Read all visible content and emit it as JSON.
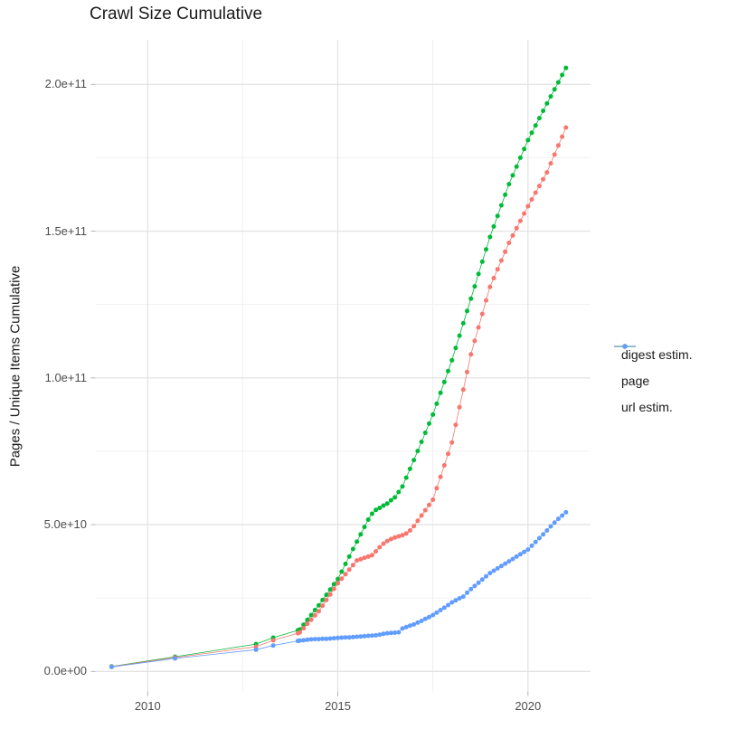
{
  "title": "Crawl Size Cumulative",
  "y_axis": {
    "title": "Pages / Unique Items Cumulative",
    "ticks": [
      {
        "label": "0.0e+00",
        "value": 0
      },
      {
        "label": "5.0e+10",
        "value": 50
      },
      {
        "label": "1.0e+11",
        "value": 100
      },
      {
        "label": "1.5e+11",
        "value": 150
      },
      {
        "label": "2.0e+11",
        "value": 200
      }
    ],
    "minor_values": [
      25,
      75,
      125,
      175
    ]
  },
  "x_axis": {
    "ticks": [
      {
        "label": "2010",
        "value": 2010
      },
      {
        "label": "2015",
        "value": 2015
      },
      {
        "label": "2020",
        "value": 2020
      }
    ],
    "minor_values": [
      2012.5,
      2017.5
    ]
  },
  "legend": {
    "items": [
      {
        "label": "digest estim.",
        "series": "digest",
        "color": "#F8766D"
      },
      {
        "label": "page",
        "series": "page",
        "color": "#00BA38"
      },
      {
        "label": "url estim.",
        "series": "url",
        "color": "#619CFF"
      }
    ]
  },
  "chart_data": {
    "type": "line",
    "title": "Crawl Size Cumulative",
    "xlabel": "",
    "ylabel": "Pages / Unique Items Cumulative",
    "unit": "billions of pages (1e9)",
    "xlim": [
      2008.45,
      2021.65
    ],
    "ylim": [
      -10,
      215
    ],
    "grid": "major+minor",
    "legend_position": "right",
    "x": [
      2009.05,
      2010.72,
      2012.85,
      2013.3,
      2013.95,
      2014.0,
      2014.1,
      2014.2,
      2014.3,
      2014.4,
      2014.5,
      2014.6,
      2014.7,
      2014.8,
      2014.9,
      2015.0,
      2015.1,
      2015.2,
      2015.3,
      2015.4,
      2015.5,
      2015.6,
      2015.7,
      2015.8,
      2015.9,
      2016.0,
      2016.1,
      2016.2,
      2016.3,
      2016.4,
      2016.5,
      2016.6,
      2016.7,
      2016.8,
      2016.9,
      2017.0,
      2017.1,
      2017.2,
      2017.3,
      2017.4,
      2017.5,
      2017.6,
      2017.7,
      2017.8,
      2017.9,
      2018.0,
      2018.1,
      2018.2,
      2018.3,
      2018.4,
      2018.5,
      2018.6,
      2018.7,
      2018.8,
      2018.9,
      2019.0,
      2019.1,
      2019.2,
      2019.3,
      2019.4,
      2019.5,
      2019.6,
      2019.7,
      2019.8,
      2019.9,
      2020.0,
      2020.1,
      2020.2,
      2020.3,
      2020.4,
      2020.5,
      2020.6,
      2020.7,
      2020.8,
      2020.9,
      2021.0
    ],
    "series": [
      {
        "name": "digest estim.",
        "color": "#F8766D",
        "values": [
          1.6,
          4.7,
          8.4,
          10.6,
          13.0,
          13.3,
          14.7,
          16.2,
          17.6,
          19.1,
          20.5,
          22.4,
          24.3,
          26.2,
          28.1,
          30.0,
          31.6,
          33.1,
          34.7,
          36.2,
          37.8,
          38.2,
          38.7,
          39.1,
          39.6,
          40.9,
          42.3,
          43.5,
          44.4,
          45.1,
          45.6,
          46.0,
          46.4,
          47.0,
          48.0,
          49.5,
          51.3,
          53.1,
          54.9,
          56.7,
          58.5,
          62.4,
          66.3,
          70.2,
          74.1,
          78.0,
          84.0,
          90.0,
          96.0,
          102.0,
          108.0,
          112.6,
          117.2,
          121.8,
          126.4,
          131.0,
          134.0,
          137.0,
          140.0,
          143.0,
          146.0,
          148.5,
          151.0,
          153.5,
          156.0,
          158.5,
          160.8,
          163.1,
          165.4,
          167.7,
          170.0,
          173.1,
          176.1,
          179.2,
          182.2,
          185.3
        ]
      },
      {
        "name": "page",
        "color": "#00BA38",
        "values": [
          1.7,
          5.0,
          9.3,
          11.5,
          14.0,
          14.3,
          15.9,
          17.6,
          19.2,
          20.9,
          22.5,
          24.3,
          26.1,
          27.9,
          29.7,
          31.5,
          34.0,
          36.6,
          39.1,
          41.7,
          44.2,
          46.7,
          49.2,
          51.7,
          53.7,
          55.0,
          55.7,
          56.5,
          57.2,
          58.3,
          59.3,
          61.1,
          63.0,
          66.0,
          69.0,
          72.0,
          75.1,
          78.2,
          81.3,
          84.4,
          87.5,
          91.2,
          94.9,
          98.6,
          102.3,
          106.0,
          110.2,
          114.4,
          118.6,
          122.8,
          127.0,
          131.2,
          135.4,
          139.6,
          143.8,
          148.0,
          151.6,
          155.2,
          158.8,
          162.4,
          166.0,
          169.0,
          172.0,
          175.0,
          178.0,
          181.0,
          183.5,
          186.0,
          188.5,
          191.0,
          193.5,
          195.9,
          198.3,
          200.7,
          203.2,
          205.6
        ]
      },
      {
        "name": "url estim.",
        "color": "#619CFF",
        "values": [
          1.5,
          4.4,
          7.4,
          8.8,
          10.4,
          10.5,
          10.6,
          10.8,
          10.9,
          11.0,
          11.0,
          11.1,
          11.1,
          11.2,
          11.3,
          11.4,
          11.5,
          11.6,
          11.6,
          11.7,
          11.8,
          11.9,
          12.0,
          12.1,
          12.2,
          12.3,
          12.5,
          12.8,
          13.0,
          13.1,
          13.2,
          13.3,
          14.6,
          15.1,
          15.6,
          16.0,
          16.6,
          17.2,
          17.9,
          18.5,
          19.2,
          20.0,
          20.9,
          21.7,
          22.6,
          23.5,
          24.2,
          24.9,
          25.5,
          26.8,
          28.0,
          29.1,
          30.2,
          31.3,
          32.4,
          33.5,
          34.3,
          35.1,
          35.9,
          36.7,
          37.5,
          38.3,
          39.1,
          39.9,
          40.7,
          41.5,
          42.8,
          44.1,
          45.4,
          46.7,
          48.0,
          49.4,
          50.7,
          52.0,
          53.1,
          54.2
        ]
      }
    ]
  }
}
